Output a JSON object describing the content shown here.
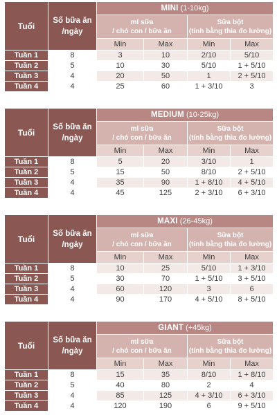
{
  "headers": {
    "age": "Tuổi",
    "meals_line1": "Số bữa ăn",
    "meals_line2": "/ngày",
    "milk_line1": "ml sữa",
    "milk_line2": "/ chó con / bữa ăn",
    "powder_line1": "Sữa bột",
    "powder_line2": "(tính bằng thìa đo lường)",
    "min": "Min",
    "max": "Max"
  },
  "tables": [
    {
      "size": "MINI",
      "range": "(1-10kg)",
      "rows": [
        {
          "week": "Tuần 1",
          "meals": "8",
          "ml_min": "3",
          "ml_max": "10",
          "pw_min": "2/10",
          "pw_max": "5/10"
        },
        {
          "week": "Tuần 2",
          "meals": "5",
          "ml_min": "10",
          "ml_max": "30",
          "pw_min": "5/10",
          "pw_max": "1 + 5/10"
        },
        {
          "week": "Tuần 3",
          "meals": "4",
          "ml_min": "20",
          "ml_max": "50",
          "pw_min": "1",
          "pw_max": "2 + 5/10"
        },
        {
          "week": "Tuần 4",
          "meals": "4",
          "ml_min": "25",
          "ml_max": "60",
          "pw_min": "1 + 3/10",
          "pw_max": "3"
        }
      ]
    },
    {
      "size": "MEDIUM",
      "range": "(10-25kg)",
      "rows": [
        {
          "week": "Tuần 1",
          "meals": "8",
          "ml_min": "5",
          "ml_max": "20",
          "pw_min": "3/10",
          "pw_max": "1"
        },
        {
          "week": "Tuần 2",
          "meals": "5",
          "ml_min": "15",
          "ml_max": "50",
          "pw_min": "8/10",
          "pw_max": "2 + 5/10"
        },
        {
          "week": "Tuần 3",
          "meals": "4",
          "ml_min": "35",
          "ml_max": "90",
          "pw_min": "1 + 8/10",
          "pw_max": "4 + 5/10"
        },
        {
          "week": "Tuần 4",
          "meals": "4",
          "ml_min": "45",
          "ml_max": "125",
          "pw_min": "2 + 3/10",
          "pw_max": "6 + 3/10"
        }
      ]
    },
    {
      "size": "MAXI",
      "range": "(26-45kg)",
      "rows": [
        {
          "week": "Tuần 1",
          "meals": "8",
          "ml_min": "10",
          "ml_max": "25",
          "pw_min": "5/10",
          "pw_max": "1 + 3/10"
        },
        {
          "week": "Tuần 2",
          "meals": "5",
          "ml_min": "30",
          "ml_max": "70",
          "pw_min": "1 + 5/10",
          "pw_max": "3 + 5/10"
        },
        {
          "week": "Tuần 3",
          "meals": "4",
          "ml_min": "60",
          "ml_max": "120",
          "pw_min": "3",
          "pw_max": "6"
        },
        {
          "week": "Tuần 4",
          "meals": "4",
          "ml_min": "90",
          "ml_max": "170",
          "pw_min": "4 + 5/10",
          "pw_max": "8 + 5/10"
        }
      ]
    },
    {
      "size": "GIANT",
      "range": "(+45kg)",
      "rows": [
        {
          "week": "Tuần 1",
          "meals": "8",
          "ml_min": "15",
          "ml_max": "35",
          "pw_min": "8/10",
          "pw_max": "1 + 8/10"
        },
        {
          "week": "Tuần 2",
          "meals": "5",
          "ml_min": "40",
          "ml_max": "80",
          "pw_min": "2",
          "pw_max": "4"
        },
        {
          "week": "Tuần 3",
          "meals": "4",
          "ml_min": "85",
          "ml_max": "125",
          "pw_min": "4 + 3/10",
          "pw_max": "6 + 3/10"
        },
        {
          "week": "Tuần 4",
          "meals": "4",
          "ml_min": "120",
          "ml_max": "190",
          "pw_min": "6",
          "pw_max": "9 + 5/10"
        }
      ]
    }
  ]
}
